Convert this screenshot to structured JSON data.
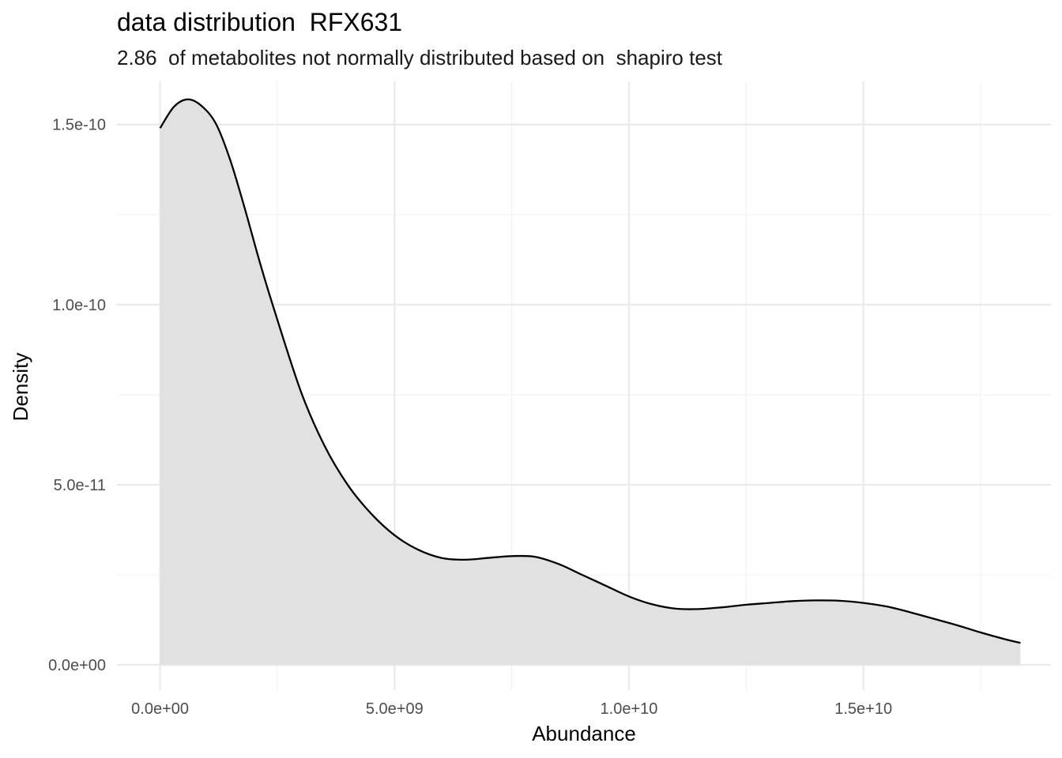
{
  "chart_data": {
    "type": "area",
    "title": "data distribution  RFX631",
    "subtitle": "2.86  of metabolites not normally distributed based on  shapiro test",
    "xlabel": "Abundance",
    "ylabel": "Density",
    "xlim": [
      -920000000.0,
      19000000000.0
    ],
    "ylim": [
      -7e-12,
      1.62e-10
    ],
    "x_ticks": [
      0,
      5000000000.0,
      10000000000.0,
      15000000000.0
    ],
    "x_tick_labels": [
      "0.0e+00",
      "5.0e+09",
      "1.0e+10",
      "1.5e+10"
    ],
    "y_ticks": [
      0,
      5e-11,
      1e-10,
      1.5e-10
    ],
    "y_tick_labels": [
      "0.0e+00",
      "5.0e-11",
      "1.0e-10",
      "1.5e-10"
    ],
    "grid": true,
    "fill_color": "#e1e1e1",
    "line_color": "#000000",
    "series": [
      {
        "x": [
          0,
          300000000.0,
          600000000.0,
          900000000.0,
          1200000000.0,
          1500000000.0,
          1800000000.0,
          2100000000.0,
          2400000000.0,
          3000000000.0,
          3500000000.0,
          4000000000.0,
          4500000000.0,
          5000000000.0,
          5500000000.0,
          6000000000.0,
          6500000000.0,
          7000000000.0,
          7500000000.0,
          8000000000.0,
          8500000000.0,
          9000000000.0,
          9500000000.0,
          10000000000.0,
          10500000000.0,
          11000000000.0,
          11500000000.0,
          12000000000.0,
          12500000000.0,
          13000000000.0,
          13500000000.0,
          14000000000.0,
          14500000000.0,
          15000000000.0,
          15500000000.0,
          16000000000.0,
          16500000000.0,
          17000000000.0,
          17500000000.0,
          18000000000.0,
          18350000000.0
        ],
        "values": [
          1.49e-10,
          1.55e-10,
          1.57e-10,
          1.55e-10,
          1.5e-10,
          1.4e-10,
          1.27e-10,
          1.13e-10,
          1e-10,
          7.6e-11,
          6.1e-11,
          5e-11,
          4.2e-11,
          3.6e-11,
          3.2e-11,
          2.97e-11,
          2.92e-11,
          2.97e-11,
          3.02e-11,
          3e-11,
          2.8e-11,
          2.5e-11,
          2.2e-11,
          1.9e-11,
          1.68e-11,
          1.56e-11,
          1.55e-11,
          1.6e-11,
          1.67e-11,
          1.72e-11,
          1.77e-11,
          1.79e-11,
          1.78e-11,
          1.72e-11,
          1.62e-11,
          1.46e-11,
          1.28e-11,
          1.1e-11,
          9e-12,
          7.2e-12,
          6.1e-12
        ]
      }
    ]
  }
}
